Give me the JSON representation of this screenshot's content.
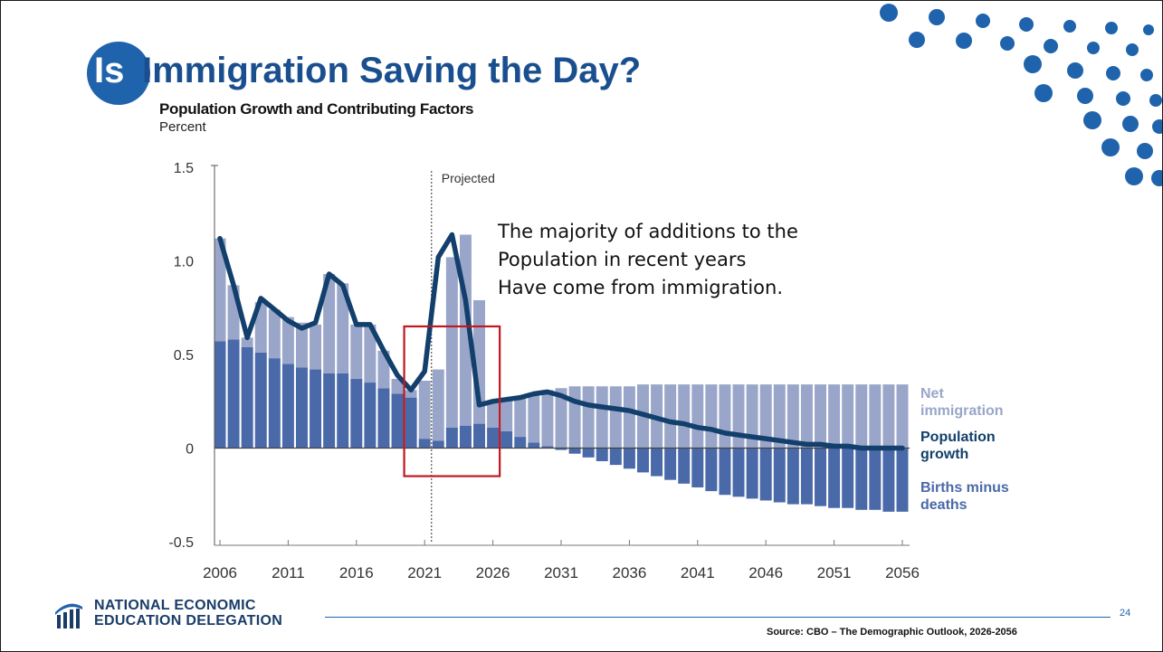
{
  "slide": {
    "title_prefix": "Is",
    "title_rest": "Immigration Saving the Day?",
    "annotation_lines": [
      "The majority of additions to the",
      "Population in recent years",
      "Have come from immigration."
    ],
    "org_name_line1": "NATIONAL ECONOMIC",
    "org_name_line2": "EDUCATION DELEGATION",
    "page_number": "24",
    "source": "Source: CBO – The Demographic Outlook, 2026-2056"
  },
  "chart_data": {
    "type": "bar",
    "title": "Population Growth and Contributing Factors",
    "unit": "Percent",
    "projected_label": "Projected",
    "projected_start_year": 2021.5,
    "ylim": [
      -0.5,
      1.5
    ],
    "yticks": [
      {
        "value": 1.5,
        "label": "1.5"
      },
      {
        "value": 1.0,
        "label": "1.0"
      },
      {
        "value": 0.5,
        "label": "0.5"
      },
      {
        "value": 0,
        "label": "0"
      },
      {
        "value": -0.5,
        "label": "-0.5"
      }
    ],
    "xticks": [
      "2006",
      "2011",
      "2016",
      "2021",
      "2026",
      "2031",
      "2036",
      "2041",
      "2046",
      "2051",
      "2056"
    ],
    "years": [
      2006,
      2007,
      2008,
      2009,
      2010,
      2011,
      2012,
      2013,
      2014,
      2015,
      2016,
      2017,
      2018,
      2019,
      2020,
      2021,
      2022,
      2023,
      2024,
      2025,
      2026,
      2027,
      2028,
      2029,
      2030,
      2031,
      2032,
      2033,
      2034,
      2035,
      2036,
      2037,
      2038,
      2039,
      2040,
      2041,
      2042,
      2043,
      2044,
      2045,
      2046,
      2047,
      2048,
      2049,
      2050,
      2051,
      2052,
      2053,
      2054,
      2055,
      2056
    ],
    "series": [
      {
        "name": "Births minus deaths",
        "color": "#4a69a8",
        "values": [
          0.57,
          0.58,
          0.54,
          0.51,
          0.48,
          0.45,
          0.43,
          0.42,
          0.4,
          0.4,
          0.37,
          0.35,
          0.32,
          0.29,
          0.27,
          0.05,
          0.04,
          0.11,
          0.12,
          0.13,
          0.11,
          0.09,
          0.06,
          0.03,
          0.01,
          -0.01,
          -0.03,
          -0.05,
          -0.07,
          -0.09,
          -0.11,
          -0.13,
          -0.15,
          -0.17,
          -0.19,
          -0.21,
          -0.23,
          -0.25,
          -0.26,
          -0.27,
          -0.28,
          -0.29,
          -0.3,
          -0.3,
          -0.31,
          -0.32,
          -0.32,
          -0.33,
          -0.33,
          -0.34,
          -0.34
        ]
      },
      {
        "name": "Net immigration",
        "color": "#9aa6c9",
        "values": [
          0.55,
          0.29,
          0.05,
          0.27,
          0.26,
          0.25,
          0.24,
          0.24,
          0.53,
          0.48,
          0.29,
          0.31,
          0.2,
          0.08,
          0.04,
          0.31,
          0.38,
          0.91,
          1.02,
          0.66,
          0.13,
          0.17,
          0.21,
          0.26,
          0.3,
          0.32,
          0.33,
          0.33,
          0.33,
          0.33,
          0.33,
          0.34,
          0.34,
          0.34,
          0.34,
          0.34,
          0.34,
          0.34,
          0.34,
          0.34,
          0.34,
          0.34,
          0.34,
          0.34,
          0.34,
          0.34,
          0.34,
          0.34,
          0.34,
          0.34,
          0.34
        ]
      },
      {
        "name": "Population growth",
        "color": "#123f6b",
        "type": "line",
        "values": [
          1.12,
          0.87,
          0.59,
          0.8,
          0.74,
          0.68,
          0.64,
          0.67,
          0.93,
          0.87,
          0.66,
          0.66,
          0.52,
          0.39,
          0.31,
          0.41,
          1.02,
          1.14,
          0.79,
          0.23,
          0.25,
          0.26,
          0.27,
          0.29,
          0.3,
          0.28,
          0.25,
          0.23,
          0.22,
          0.21,
          0.2,
          0.18,
          0.16,
          0.14,
          0.13,
          0.11,
          0.1,
          0.08,
          0.07,
          0.06,
          0.05,
          0.04,
          0.03,
          0.02,
          0.02,
          0.01,
          0.01,
          0.0,
          0.0,
          0.0,
          0.0
        ]
      }
    ],
    "highlight_box": {
      "x_start": 2019.5,
      "x_end": 2026.5,
      "y_top": 0.65,
      "y_bottom": -0.15,
      "color": "#c0181f"
    },
    "legend": {
      "placement": "right",
      "net_immigration_lines": [
        "Net",
        "immigration"
      ],
      "population_growth_lines": [
        "Population",
        "growth"
      ],
      "births_minus_deaths_lines": [
        "Births minus",
        "deaths"
      ]
    }
  },
  "colors": {
    "brand_blue": "#1f63ad",
    "title_blue": "#1a4f8f",
    "highlight_red": "#c0181f"
  },
  "decor": {
    "logo_icon": "institution-columns-icon",
    "corner_pattern": "dot-grid-pattern"
  }
}
